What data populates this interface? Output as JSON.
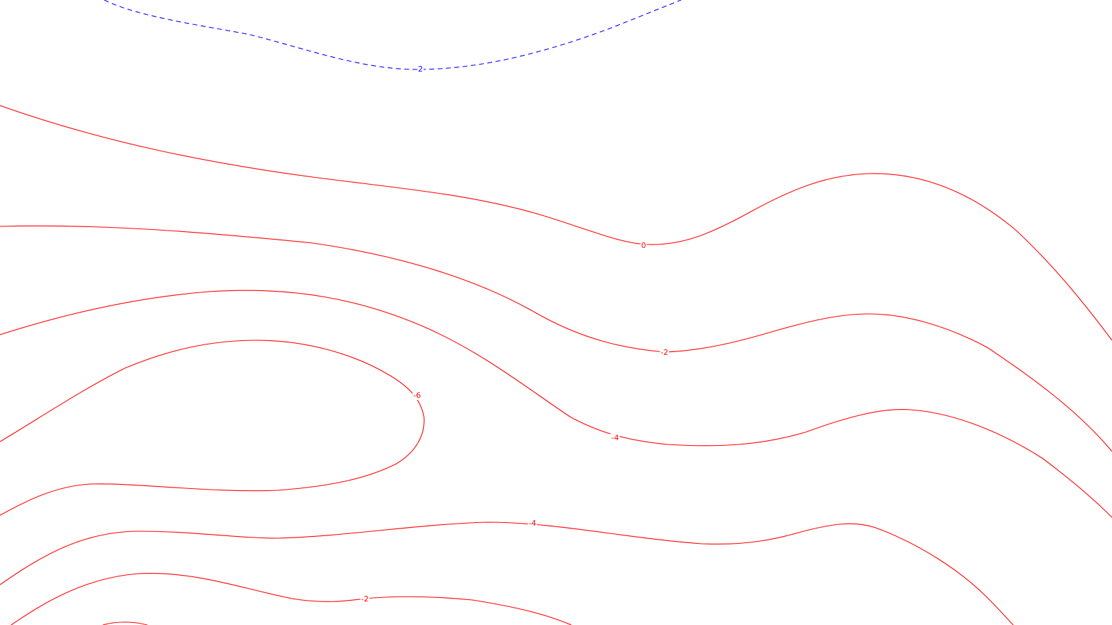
{
  "map": {
    "background": "#ffffff",
    "contours": [
      {
        "id": "contour-2-top-dashed",
        "level": "2",
        "color": "#0000ff",
        "dashed": true
      },
      {
        "id": "contour-0",
        "level": "0",
        "color": "#ff0000",
        "dashed": false
      },
      {
        "id": "contour-minus2-upper",
        "level": "-2",
        "color": "#ff0000",
        "dashed": false
      },
      {
        "id": "contour-minus4-upper",
        "level": "-4",
        "color": "#ff0000",
        "dashed": false
      },
      {
        "id": "contour-minus6",
        "level": "-6",
        "color": "#ff0000",
        "dashed": false
      },
      {
        "id": "contour-minus4-lower",
        "level": "-4",
        "color": "#ff0000",
        "dashed": false
      },
      {
        "id": "contour-minus2-lower",
        "level": "-2",
        "color": "#ff0000",
        "dashed": false
      },
      {
        "id": "contour-unlabeled-bottom",
        "level": "",
        "color": "#ff0000",
        "dashed": false
      },
      {
        "id": "contour-unlabeled-bottom-edge",
        "level": "",
        "color": "#ff0000",
        "dashed": false
      }
    ]
  }
}
